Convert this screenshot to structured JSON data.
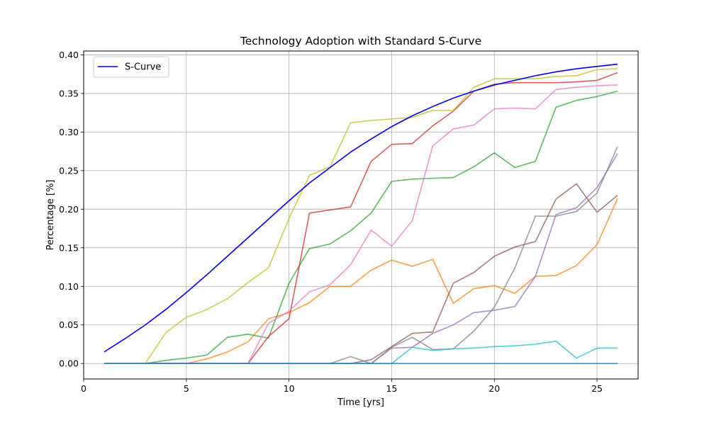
{
  "chart_data": {
    "type": "line",
    "title": "Technology Adoption with Standard S-Curve",
    "xlabel": "Time [yrs]",
    "ylabel": "Percentage [%]",
    "xlim": [
      0,
      27
    ],
    "ylim": [
      -0.02,
      0.405
    ],
    "xticks": [
      0,
      5,
      10,
      15,
      20,
      25
    ],
    "yticks": [
      0.0,
      0.05,
      0.1,
      0.15,
      0.2,
      0.25,
      0.3,
      0.35,
      0.4
    ],
    "xtick_labels": [
      "0",
      "5",
      "10",
      "15",
      "20",
      "25"
    ],
    "ytick_labels": [
      "0.00",
      "0.05",
      "0.10",
      "0.15",
      "0.20",
      "0.25",
      "0.30",
      "0.35",
      "0.40"
    ],
    "grid": true,
    "legend_position": "top-left",
    "x": [
      1,
      2,
      3,
      4,
      5,
      6,
      7,
      8,
      9,
      10,
      11,
      12,
      13,
      14,
      15,
      16,
      17,
      18,
      19,
      20,
      21,
      22,
      23,
      24,
      25,
      26
    ],
    "series": [
      {
        "name": "S-Curve",
        "color": "#0000ff",
        "opacity": 1,
        "width": 1.6,
        "in_legend": true,
        "values": [
          0.015,
          0.032,
          0.05,
          0.07,
          0.092,
          0.115,
          0.139,
          0.163,
          0.187,
          0.211,
          0.234,
          0.254,
          0.274,
          0.291,
          0.307,
          0.321,
          0.333,
          0.344,
          0.353,
          0.361,
          0.367,
          0.373,
          0.378,
          0.382,
          0.385,
          0.388
        ]
      },
      {
        "color": "#ff7f0e",
        "opacity": 0.75,
        "width": 1.6,
        "in_legend": false,
        "values": [
          0,
          0,
          0,
          0,
          0,
          0.006,
          0.015,
          0.028,
          0.058,
          0.066,
          0.079,
          0.1,
          0.1,
          0.121,
          0.134,
          0.126,
          0.135,
          0.078,
          0.097,
          0.101,
          0.091,
          0.113,
          0.114,
          0.127,
          0.154,
          0.214
        ]
      },
      {
        "color": "#2ca02c",
        "opacity": 0.75,
        "width": 1.6,
        "in_legend": false,
        "values": [
          0,
          0,
          0,
          0.004,
          0.007,
          0.011,
          0.034,
          0.038,
          0.033,
          0.104,
          0.149,
          0.155,
          0.172,
          0.195,
          0.236,
          0.239,
          0.24,
          0.241,
          0.255,
          0.273,
          0.254,
          0.262,
          0.332,
          0.341,
          0.346,
          0.353
        ]
      },
      {
        "color": "#d62728",
        "opacity": 0.75,
        "width": 1.6,
        "in_legend": false,
        "values": [
          0,
          0,
          0,
          0,
          0,
          0,
          0,
          0,
          0.035,
          0.058,
          0.195,
          0.199,
          0.203,
          0.262,
          0.284,
          0.285,
          0.308,
          0.327,
          0.353,
          0.362,
          0.364,
          0.364,
          0.364,
          0.365,
          0.367,
          0.377
        ]
      },
      {
        "color": "#9467bd",
        "opacity": 0.75,
        "width": 1.6,
        "in_legend": false,
        "values": [
          0,
          0,
          0,
          0,
          0,
          0,
          0,
          0,
          0,
          0,
          0,
          0,
          0,
          0,
          0.02,
          0.021,
          0.039,
          0.05,
          0.066,
          0.069,
          0.074,
          0.113,
          0.193,
          0.202,
          0.228,
          0.272
        ]
      },
      {
        "color": "#8c564b",
        "opacity": 0.75,
        "width": 1.6,
        "in_legend": false,
        "values": [
          0,
          0,
          0,
          0,
          0,
          0,
          0,
          0,
          0,
          0,
          0,
          0,
          0,
          0.005,
          0.022,
          0.039,
          0.041,
          0.104,
          0.118,
          0.139,
          0.151,
          0.158,
          0.213,
          0.233,
          0.196,
          0.218
        ]
      },
      {
        "color": "#e377c2",
        "opacity": 0.75,
        "width": 1.6,
        "in_legend": false,
        "values": [
          0,
          0,
          0,
          0,
          0,
          0,
          0,
          0,
          0.052,
          0.068,
          0.093,
          0.102,
          0.128,
          0.173,
          0.152,
          0.185,
          0.282,
          0.304,
          0.309,
          0.33,
          0.331,
          0.33,
          0.355,
          0.358,
          0.36,
          0.361
        ]
      },
      {
        "color": "#7f7f7f",
        "opacity": 0.75,
        "width": 1.6,
        "in_legend": false,
        "values": [
          0,
          0,
          0,
          0,
          0,
          0,
          0,
          0,
          0,
          0,
          0,
          0,
          0.009,
          0,
          0.021,
          0.034,
          0.018,
          0.019,
          0.042,
          0.073,
          0.124,
          0.191,
          0.191,
          0.197,
          0.221,
          0.281
        ]
      },
      {
        "color": "#bcbd22",
        "opacity": 0.75,
        "width": 1.6,
        "in_legend": false,
        "values": [
          0,
          0,
          0,
          0.04,
          0.06,
          0.07,
          0.084,
          0.105,
          0.124,
          0.188,
          0.244,
          0.255,
          0.312,
          0.315,
          0.317,
          0.319,
          0.328,
          0.328,
          0.358,
          0.369,
          0.369,
          0.369,
          0.372,
          0.373,
          0.381,
          0.382
        ]
      },
      {
        "color": "#17becf",
        "opacity": 0.75,
        "width": 1.6,
        "in_legend": false,
        "values": [
          0,
          0,
          0,
          0,
          0,
          0,
          0,
          0,
          0,
          0,
          0,
          0,
          0,
          0,
          0,
          0.021,
          0.017,
          0.019,
          0.02,
          0.022,
          0.023,
          0.025,
          0.029,
          0.007,
          0.02,
          0.02
        ]
      },
      {
        "color": "#1f77b4",
        "opacity": 0.75,
        "width": 1.6,
        "in_legend": false,
        "values": [
          0,
          0,
          0,
          0,
          0,
          0,
          0,
          0,
          0,
          0,
          0,
          0,
          0,
          0,
          0,
          0,
          0,
          0,
          0,
          0,
          0,
          0,
          0,
          0,
          0,
          0
        ]
      }
    ]
  }
}
